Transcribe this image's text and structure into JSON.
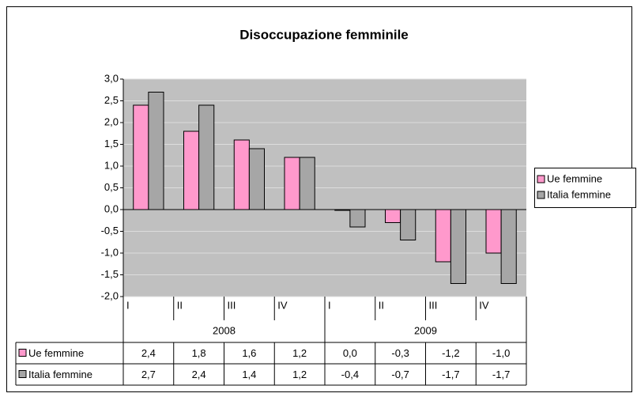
{
  "chart_data": {
    "type": "bar",
    "title": "Disoccupazione femminile",
    "categories": [
      "I",
      "II",
      "III",
      "IV",
      "I",
      "II",
      "III",
      "IV"
    ],
    "years": [
      "2008",
      "2009"
    ],
    "series": [
      {
        "name": "Ue femmine",
        "color": "#ff99cc",
        "values": [
          2.4,
          1.8,
          1.6,
          1.2,
          0.0,
          -0.3,
          -1.2,
          -1.0
        ],
        "value_labels": [
          "2,4",
          "1,8",
          "1,6",
          "1,2",
          "0,0",
          "-0,3",
          "-1,2",
          "-1,0"
        ]
      },
      {
        "name": "Italia femmine",
        "color": "#a6a6a6",
        "values": [
          2.7,
          2.4,
          1.4,
          1.2,
          -0.4,
          -0.7,
          -1.7,
          -1.7
        ],
        "value_labels": [
          "2,7",
          "2,4",
          "1,4",
          "1,2",
          "-0,4",
          "-0,7",
          "-1,7",
          "-1,7"
        ]
      }
    ],
    "ylim": [
      -2,
      3
    ],
    "yticks": [
      {
        "value": -2,
        "label": "-2,0"
      },
      {
        "value": -1.5,
        "label": "-1,5"
      },
      {
        "value": -1,
        "label": "-1,0"
      },
      {
        "value": -0.5,
        "label": "-0,5"
      },
      {
        "value": 0,
        "label": "0,0"
      },
      {
        "value": 0.5,
        "label": "0,5"
      },
      {
        "value": 1,
        "label": "1,0"
      },
      {
        "value": 1.5,
        "label": "1,5"
      },
      {
        "value": 2,
        "label": "2,0"
      },
      {
        "value": 2.5,
        "label": "2,5"
      },
      {
        "value": 3,
        "label": "3,0"
      }
    ],
    "grid": true,
    "legend": "right",
    "plot_background": "#c0c0c0"
  }
}
